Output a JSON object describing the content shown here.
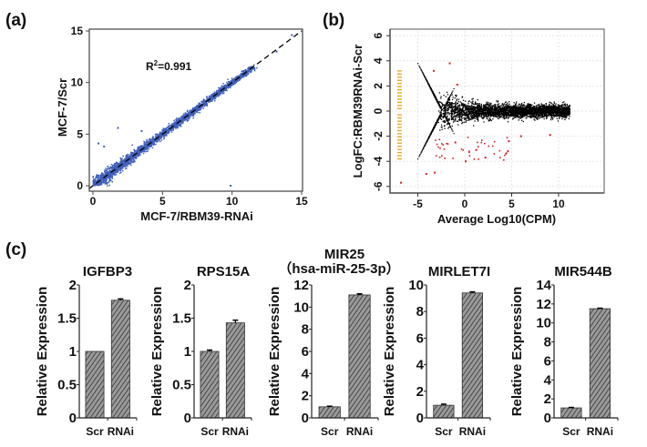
{
  "panels": {
    "a": "(a)",
    "b": "(b)",
    "c": "(c)"
  },
  "chart_data": [
    {
      "id": "a",
      "type": "scatter",
      "xlabel": "MCF-7/RBM39-RNAi",
      "ylabel": "MCF-7/Scr",
      "xlim": [
        0,
        15
      ],
      "ylim": [
        0,
        15
      ],
      "xticks": [
        "0",
        "5",
        "10",
        "15"
      ],
      "yticks": [
        "0",
        "5",
        "10",
        "15"
      ],
      "annotation": {
        "base": "R",
        "sup": "2",
        "rest": "=0.991"
      },
      "fit_line": {
        "slope": 1,
        "intercept": 0,
        "style": "dashed"
      },
      "point_color": "#3f5fb8",
      "outliers": [
        [
          0.4,
          4.1
        ],
        [
          0.8,
          3.8
        ],
        [
          1.8,
          5.6
        ],
        [
          3.5,
          5.3
        ],
        [
          9.9,
          0
        ],
        [
          13.2,
          13.0
        ],
        [
          14.3,
          14.6
        ]
      ]
    },
    {
      "id": "b",
      "type": "scatter",
      "xlabel": "Average Log10(CPM)",
      "ylabel": "LogFC:RBM39RNAi-Scr",
      "xlim": [
        -8.3,
        14.6
      ],
      "ylim": [
        -6.6,
        6.5
      ],
      "xticks": [
        "-5",
        "0",
        "5",
        "10"
      ],
      "yticks": [
        "-6",
        "-4",
        "-2",
        "0",
        "2",
        "4",
        "6"
      ],
      "grid": true,
      "colors": {
        "not_significant": "#000000",
        "significant": "#cc2222",
        "low_count": "#e8a317"
      },
      "significant_points": [
        [
          -1.6,
          3.8
        ],
        [
          -3.3,
          3.2
        ],
        [
          -0.8,
          2.1
        ],
        [
          -1.0,
          -2.5
        ],
        [
          0.1,
          -4.0
        ],
        [
          2.2,
          -3.7
        ],
        [
          4.6,
          -3.2
        ],
        [
          4.7,
          -2.4
        ],
        [
          6.0,
          -2.0
        ],
        [
          9.1,
          -1.9
        ],
        [
          -6.8,
          -5.7
        ],
        [
          -4.1,
          -5.0
        ],
        [
          -3.2,
          -4.9
        ]
      ]
    },
    {
      "id": "c1",
      "type": "bar",
      "title": "IGFBP3",
      "ylabel": "Relative Expression",
      "categories": [
        "Scr",
        "RNAi"
      ],
      "values": [
        1.0,
        1.77
      ],
      "errors": [
        0.0,
        0.02
      ],
      "ylim": [
        0,
        2
      ],
      "yticks": [
        "0",
        "0.5",
        "1",
        "1.5",
        "2"
      ]
    },
    {
      "id": "c2",
      "type": "bar",
      "title": "RPS15A",
      "ylabel": "Relative Expression",
      "categories": [
        "Scr",
        "RNAi"
      ],
      "values": [
        1.0,
        1.43
      ],
      "errors": [
        0.02,
        0.04
      ],
      "ylim": [
        0,
        2
      ],
      "yticks": [
        "0",
        "0.5",
        "1",
        "1.5",
        "2"
      ]
    },
    {
      "id": "c3",
      "type": "bar",
      "title": "MIR25",
      "subtitle": "（hsa-miR-25-3p）",
      "ylabel": "Relative Expression",
      "categories": [
        "Scr",
        "RNAi"
      ],
      "values": [
        1.0,
        11.1
      ],
      "errors": [
        0.05,
        0.1
      ],
      "ylim": [
        0,
        12
      ],
      "yticks": [
        "0",
        "2",
        "4",
        "6",
        "8",
        "10",
        "12"
      ]
    },
    {
      "id": "c4",
      "type": "bar",
      "title": "MIRLET7I",
      "ylabel": "Relative Expression",
      "categories": [
        "Scr",
        "RNAi"
      ],
      "values": [
        0.95,
        9.4
      ],
      "errors": [
        0.08,
        0.08
      ],
      "ylim": [
        0,
        10
      ],
      "yticks": [
        "0",
        "2",
        "4",
        "6",
        "8",
        "10"
      ]
    },
    {
      "id": "c5",
      "type": "bar",
      "title": "MIR544B",
      "ylabel": "Relative Expression",
      "categories": [
        "Scr",
        "RNAi"
      ],
      "values": [
        1.05,
        11.5
      ],
      "errors": [
        0.05,
        0.05
      ],
      "ylim": [
        0,
        14
      ],
      "yticks": [
        "0",
        "2",
        "4",
        "6",
        "8",
        "10",
        "12",
        "14"
      ]
    }
  ]
}
